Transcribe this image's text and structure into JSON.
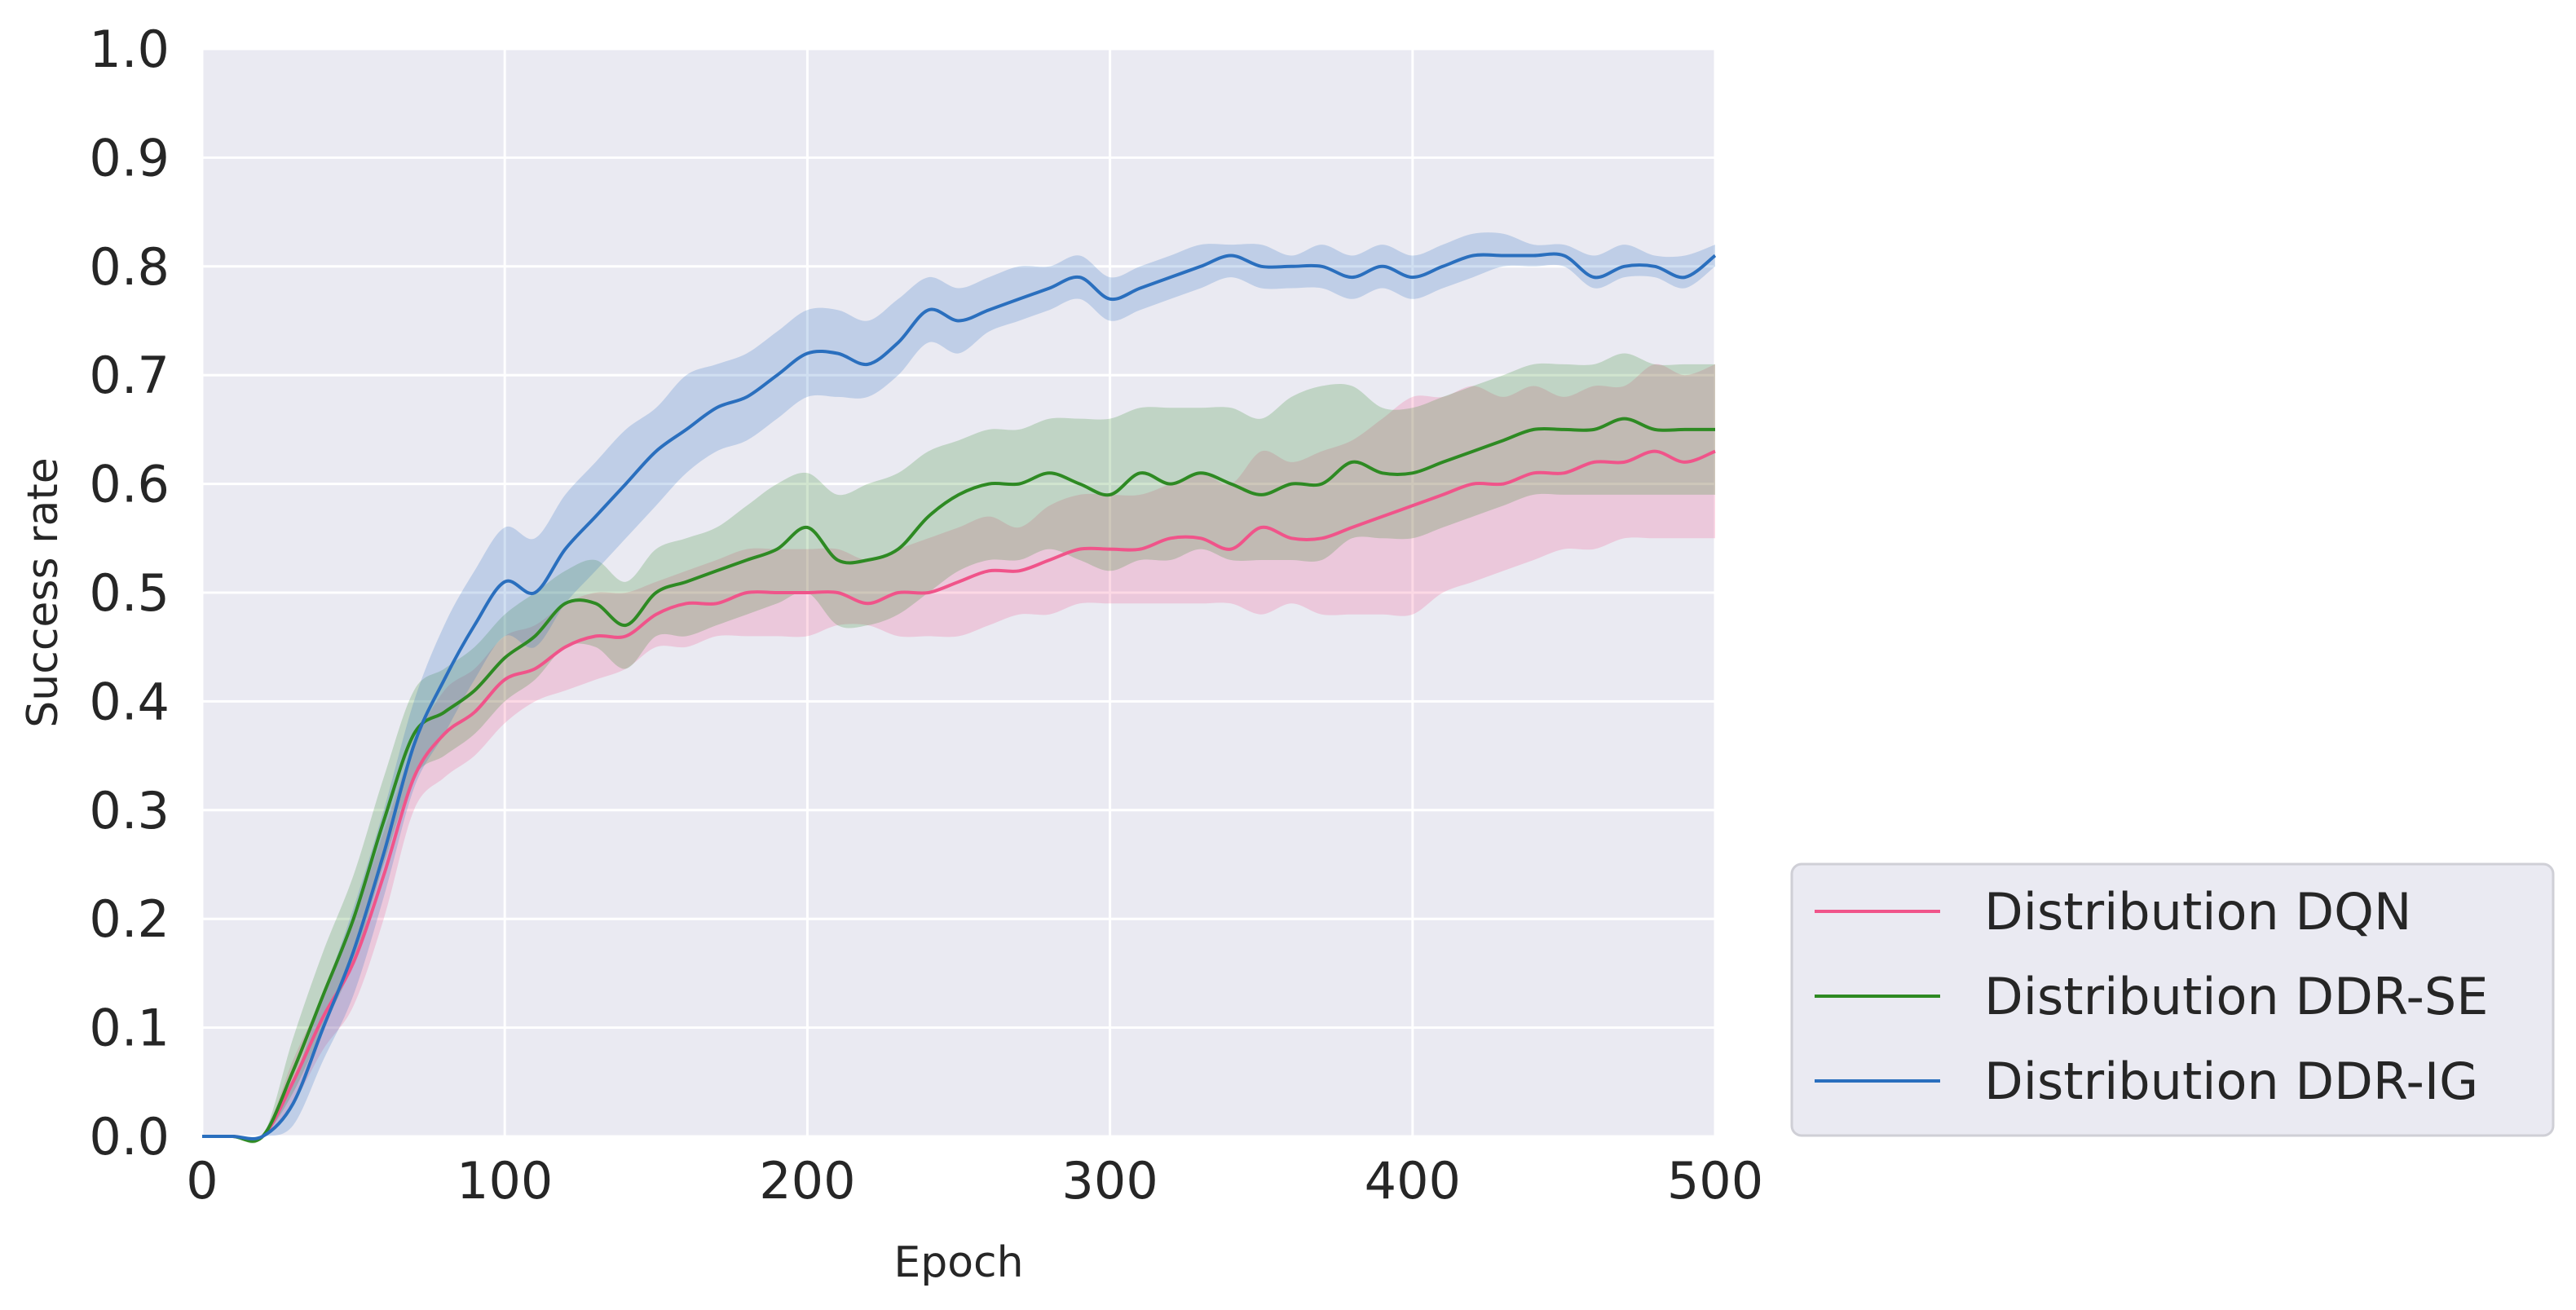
{
  "chart_data": {
    "type": "line",
    "title": "",
    "xlabel": "Epoch",
    "ylabel": "Success rate",
    "xlim": [
      0,
      500
    ],
    "ylim": [
      0,
      1.0
    ],
    "xticks": [
      "0",
      "100",
      "200",
      "300",
      "400",
      "500"
    ],
    "yticks": [
      "0.0",
      "0.1",
      "0.2",
      "0.3",
      "0.4",
      "0.5",
      "0.6",
      "0.7",
      "0.8",
      "0.9",
      "1.0"
    ],
    "grid": true,
    "background": "#eaeaf2",
    "legend_position": "lower-right-outside",
    "x": [
      0,
      10,
      20,
      30,
      40,
      50,
      60,
      70,
      80,
      90,
      100,
      110,
      120,
      130,
      140,
      150,
      160,
      170,
      180,
      190,
      200,
      210,
      220,
      230,
      240,
      250,
      260,
      270,
      280,
      290,
      300,
      310,
      320,
      330,
      340,
      350,
      360,
      370,
      380,
      390,
      400,
      410,
      420,
      430,
      440,
      450,
      460,
      470,
      480,
      490,
      500
    ],
    "series": [
      {
        "name": "Distribution DQN",
        "color": "#f0548a",
        "values": [
          0.0,
          0.0,
          0.0,
          0.05,
          0.11,
          0.16,
          0.24,
          0.33,
          0.37,
          0.39,
          0.42,
          0.43,
          0.45,
          0.46,
          0.46,
          0.48,
          0.49,
          0.49,
          0.5,
          0.5,
          0.5,
          0.5,
          0.49,
          0.5,
          0.5,
          0.51,
          0.52,
          0.52,
          0.53,
          0.54,
          0.54,
          0.54,
          0.55,
          0.55,
          0.54,
          0.56,
          0.55,
          0.55,
          0.56,
          0.57,
          0.58,
          0.59,
          0.6,
          0.6,
          0.61,
          0.61,
          0.62,
          0.62,
          0.63,
          0.62,
          0.63
        ],
        "lower": [
          0.0,
          0.0,
          0.0,
          0.03,
          0.08,
          0.12,
          0.2,
          0.3,
          0.33,
          0.35,
          0.38,
          0.4,
          0.41,
          0.42,
          0.43,
          0.45,
          0.45,
          0.46,
          0.46,
          0.46,
          0.46,
          0.47,
          0.47,
          0.46,
          0.46,
          0.46,
          0.47,
          0.48,
          0.48,
          0.49,
          0.49,
          0.49,
          0.49,
          0.49,
          0.49,
          0.48,
          0.49,
          0.48,
          0.48,
          0.48,
          0.48,
          0.5,
          0.51,
          0.52,
          0.53,
          0.54,
          0.54,
          0.55,
          0.55,
          0.55,
          0.55
        ],
        "upper": [
          0.0,
          0.0,
          0.0,
          0.07,
          0.13,
          0.2,
          0.28,
          0.36,
          0.41,
          0.43,
          0.46,
          0.47,
          0.49,
          0.5,
          0.5,
          0.51,
          0.52,
          0.53,
          0.54,
          0.54,
          0.54,
          0.54,
          0.53,
          0.54,
          0.55,
          0.56,
          0.57,
          0.56,
          0.58,
          0.59,
          0.59,
          0.59,
          0.6,
          0.61,
          0.6,
          0.63,
          0.62,
          0.63,
          0.64,
          0.66,
          0.68,
          0.68,
          0.69,
          0.68,
          0.69,
          0.68,
          0.69,
          0.69,
          0.71,
          0.7,
          0.71
        ]
      },
      {
        "name": "Distribution DDR-SE",
        "color": "#2e8a23",
        "values": [
          0.0,
          0.0,
          0.0,
          0.06,
          0.13,
          0.2,
          0.29,
          0.37,
          0.39,
          0.41,
          0.44,
          0.46,
          0.49,
          0.49,
          0.47,
          0.5,
          0.51,
          0.52,
          0.53,
          0.54,
          0.56,
          0.53,
          0.53,
          0.54,
          0.57,
          0.59,
          0.6,
          0.6,
          0.61,
          0.6,
          0.59,
          0.61,
          0.6,
          0.61,
          0.6,
          0.59,
          0.6,
          0.6,
          0.62,
          0.61,
          0.61,
          0.62,
          0.63,
          0.64,
          0.65,
          0.65,
          0.65,
          0.66,
          0.65,
          0.65,
          0.65
        ],
        "lower": [
          0.0,
          0.0,
          0.0,
          0.04,
          0.1,
          0.16,
          0.25,
          0.33,
          0.35,
          0.37,
          0.4,
          0.42,
          0.45,
          0.45,
          0.43,
          0.46,
          0.46,
          0.47,
          0.48,
          0.49,
          0.5,
          0.47,
          0.47,
          0.48,
          0.5,
          0.52,
          0.53,
          0.53,
          0.54,
          0.53,
          0.52,
          0.53,
          0.53,
          0.54,
          0.53,
          0.53,
          0.53,
          0.53,
          0.55,
          0.55,
          0.55,
          0.56,
          0.57,
          0.58,
          0.59,
          0.59,
          0.59,
          0.59,
          0.59,
          0.59,
          0.59
        ],
        "upper": [
          0.0,
          0.0,
          0.0,
          0.09,
          0.17,
          0.24,
          0.33,
          0.41,
          0.43,
          0.45,
          0.48,
          0.5,
          0.52,
          0.53,
          0.51,
          0.54,
          0.55,
          0.56,
          0.58,
          0.6,
          0.61,
          0.59,
          0.6,
          0.61,
          0.63,
          0.64,
          0.65,
          0.65,
          0.66,
          0.66,
          0.66,
          0.67,
          0.67,
          0.67,
          0.67,
          0.66,
          0.68,
          0.69,
          0.69,
          0.67,
          0.67,
          0.68,
          0.69,
          0.7,
          0.71,
          0.71,
          0.71,
          0.72,
          0.71,
          0.71,
          0.71
        ]
      },
      {
        "name": "Distribution DDR-IG",
        "color": "#2a6fbe",
        "values": [
          0.0,
          0.0,
          0.0,
          0.03,
          0.1,
          0.17,
          0.26,
          0.36,
          0.42,
          0.47,
          0.51,
          0.5,
          0.54,
          0.57,
          0.6,
          0.63,
          0.65,
          0.67,
          0.68,
          0.7,
          0.72,
          0.72,
          0.71,
          0.73,
          0.76,
          0.75,
          0.76,
          0.77,
          0.78,
          0.79,
          0.77,
          0.78,
          0.79,
          0.8,
          0.81,
          0.8,
          0.8,
          0.8,
          0.79,
          0.8,
          0.79,
          0.8,
          0.81,
          0.81,
          0.81,
          0.81,
          0.79,
          0.8,
          0.8,
          0.79,
          0.81
        ],
        "lower": [
          0.0,
          0.0,
          0.0,
          0.01,
          0.07,
          0.13,
          0.22,
          0.32,
          0.37,
          0.42,
          0.46,
          0.45,
          0.49,
          0.52,
          0.55,
          0.58,
          0.61,
          0.63,
          0.64,
          0.66,
          0.68,
          0.68,
          0.68,
          0.7,
          0.73,
          0.72,
          0.74,
          0.75,
          0.76,
          0.77,
          0.75,
          0.76,
          0.77,
          0.78,
          0.79,
          0.78,
          0.78,
          0.78,
          0.77,
          0.78,
          0.77,
          0.78,
          0.79,
          0.8,
          0.8,
          0.8,
          0.78,
          0.79,
          0.79,
          0.78,
          0.8
        ],
        "upper": [
          0.0,
          0.0,
          0.0,
          0.05,
          0.13,
          0.21,
          0.3,
          0.4,
          0.47,
          0.52,
          0.56,
          0.55,
          0.59,
          0.62,
          0.65,
          0.67,
          0.7,
          0.71,
          0.72,
          0.74,
          0.76,
          0.76,
          0.75,
          0.77,
          0.79,
          0.78,
          0.79,
          0.8,
          0.8,
          0.81,
          0.79,
          0.8,
          0.81,
          0.82,
          0.82,
          0.82,
          0.81,
          0.82,
          0.81,
          0.82,
          0.81,
          0.82,
          0.83,
          0.83,
          0.82,
          0.82,
          0.81,
          0.82,
          0.81,
          0.81,
          0.82
        ]
      }
    ]
  }
}
